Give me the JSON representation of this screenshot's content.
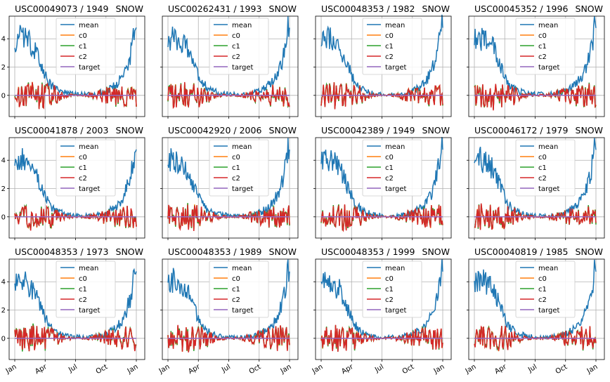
{
  "figure": {
    "x_tick_labels": [
      "Jan",
      "Apr",
      "Jul",
      "Oct",
      "Jan"
    ],
    "y_tick_labels": [
      "0",
      "2",
      "4"
    ],
    "legend_entries": [
      "mean",
      "c0",
      "c1",
      "c2",
      "target"
    ],
    "colors": {
      "mean": "#1f77b4",
      "c0": "#ff7f0e",
      "c1": "#2ca02c",
      "c2": "#d62728",
      "target": "#9467bd"
    }
  },
  "chart_data": [
    {
      "type": "line",
      "title": "USC00049073 / 1949",
      "title_right": "SNOW"
    },
    {
      "type": "line",
      "title": "USC00262431 / 1993",
      "title_right": "SNOW"
    },
    {
      "type": "line",
      "title": "USC00048353 / 1982",
      "title_right": "SNOW"
    },
    {
      "type": "line",
      "title": "USC00045352 / 1996",
      "title_right": "SNOW"
    },
    {
      "type": "line",
      "title": "USC00041878 / 2003",
      "title_right": "SNOW"
    },
    {
      "type": "line",
      "title": "USC00042920 / 2006",
      "title_right": "SNOW"
    },
    {
      "type": "line",
      "title": "USC00042389 / 1949",
      "title_right": "SNOW"
    },
    {
      "type": "line",
      "title": "USC00046172 / 1979",
      "title_right": "SNOW"
    },
    {
      "type": "line",
      "title": "USC00048353 / 1973",
      "title_right": "SNOW"
    },
    {
      "type": "line",
      "title": "USC00048353 / 1989",
      "title_right": "SNOW"
    },
    {
      "type": "line",
      "title": "USC00048353 / 1999",
      "title_right": "SNOW"
    },
    {
      "type": "line",
      "title": "USC00040819 / 1985",
      "title_right": "SNOW"
    }
  ],
  "shared_axes": {
    "x_ticks": [
      "Jan",
      "Apr",
      "Jul",
      "Oct",
      "Jan"
    ],
    "y_ticks": [
      0,
      2,
      4
    ],
    "ylim": [
      -1.5,
      5.6
    ],
    "grid": true,
    "legend_position": "top-center"
  },
  "series_profile": {
    "mean": [
      [
        0,
        3.8
      ],
      [
        0.04,
        4.1
      ],
      [
        0.1,
        3.9
      ],
      [
        0.16,
        3.3
      ],
      [
        0.22,
        2.0
      ],
      [
        0.28,
        0.9
      ],
      [
        0.34,
        0.4
      ],
      [
        0.42,
        0.15
      ],
      [
        0.5,
        0.05
      ],
      [
        0.6,
        0.02
      ],
      [
        0.68,
        0.1
      ],
      [
        0.76,
        0.3
      ],
      [
        0.84,
        0.8
      ],
      [
        0.9,
        1.5
      ],
      [
        0.95,
        2.8
      ],
      [
        1.0,
        5.2
      ]
    ],
    "c0_amplitude": [
      [
        0,
        0.8
      ],
      [
        0.15,
        1.0
      ],
      [
        0.3,
        0.8
      ],
      [
        0.4,
        0.2
      ],
      [
        0.5,
        0.05
      ],
      [
        0.6,
        0.1
      ],
      [
        0.72,
        0.5
      ],
      [
        0.85,
        0.8
      ],
      [
        1.0,
        0.9
      ]
    ],
    "target": 0
  }
}
